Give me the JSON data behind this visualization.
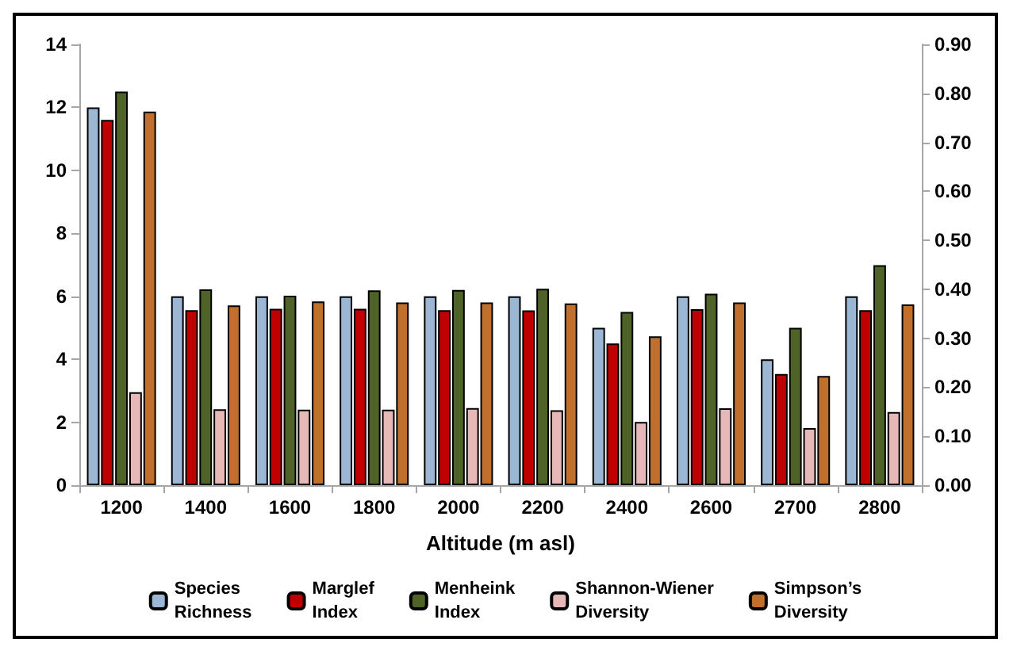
{
  "chart_data": {
    "type": "bar",
    "xlabel": "Altitude (m asl)",
    "categories": [
      "1200",
      "1400",
      "1600",
      "1800",
      "2000",
      "2200",
      "2400",
      "2600",
      "2700",
      "2800"
    ],
    "series": [
      {
        "name": "Species Richness",
        "color": "#9bb7d4",
        "values": [
          12,
          6,
          6,
          6,
          6,
          6,
          5,
          6,
          4,
          6
        ]
      },
      {
        "name": "Marglef Index",
        "color": "#c00000",
        "values": [
          11.6,
          5.56,
          5.6,
          5.6,
          5.56,
          5.55,
          4.5,
          5.59,
          3.53,
          5.56
        ]
      },
      {
        "name": "Menheink Index",
        "color": "#4f6228",
        "values": [
          12.5,
          6.22,
          6.02,
          6.19,
          6.2,
          6.24,
          5.5,
          6.08,
          5.0,
          6.99
        ]
      },
      {
        "name": "Shannon-Wiener Diversity",
        "color": "#e6b9b8",
        "values": [
          2.95,
          2.41,
          2.4,
          2.4,
          2.45,
          2.38,
          2.01,
          2.44,
          1.81,
          2.32
        ]
      },
      {
        "name": "Simpson’s Diversity",
        "color": "#c0702c",
        "axis": "y2",
        "values": [
          0.763,
          0.367,
          0.375,
          0.373,
          0.373,
          0.371,
          0.304,
          0.373,
          0.223,
          0.369
        ]
      }
    ],
    "ylim": [
      0,
      14
    ],
    "yticks": [
      0,
      2,
      4,
      6,
      8,
      10,
      12,
      14
    ],
    "y2lim": [
      0,
      0.9
    ],
    "y2ticks": [
      {
        "value": 0,
        "label": "0.00"
      },
      {
        "value": 0.1,
        "label": "0.10"
      },
      {
        "value": 0.2,
        "label": "0.20"
      },
      {
        "value": 0.3,
        "label": "0.30"
      },
      {
        "value": 0.4,
        "label": "0.40"
      },
      {
        "value": 0.5,
        "label": "0.50"
      },
      {
        "value": 0.6,
        "label": "0.60"
      },
      {
        "value": 0.7,
        "label": "0.70"
      },
      {
        "value": 0.8,
        "label": "0.80"
      },
      {
        "value": 0.9,
        "label": "0.90"
      }
    ],
    "grid": false,
    "legend": "bottom"
  }
}
